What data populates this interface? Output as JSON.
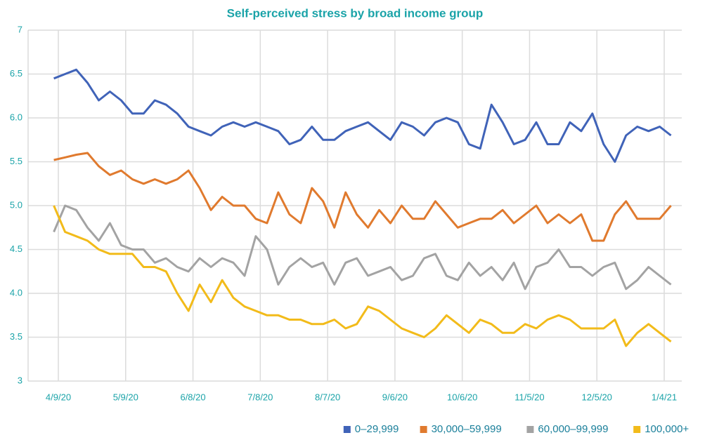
{
  "chart_data": {
    "type": "line",
    "title": "Self-perceived stress by broad income group",
    "x": [
      "4/7/20",
      "4/12/20",
      "4/17/20",
      "4/22/20",
      "4/27/20",
      "5/2/20",
      "5/7/20",
      "5/12/20",
      "5/17/20",
      "5/22/20",
      "5/27/20",
      "6/1/20",
      "6/6/20",
      "6/11/20",
      "6/16/20",
      "6/21/20",
      "6/26/20",
      "7/1/20",
      "7/6/20",
      "7/11/20",
      "7/16/20",
      "7/21/20",
      "7/26/20",
      "7/31/20",
      "8/5/20",
      "8/10/20",
      "8/15/20",
      "8/20/20",
      "8/25/20",
      "8/30/20",
      "9/4/20",
      "9/9/20",
      "9/14/20",
      "9/19/20",
      "9/24/20",
      "9/29/20",
      "10/4/20",
      "10/9/20",
      "10/14/20",
      "10/19/20",
      "10/24/20",
      "10/29/20",
      "11/3/20",
      "11/8/20",
      "11/13/20",
      "11/18/20",
      "11/23/20",
      "11/28/20",
      "12/3/20",
      "12/8/20",
      "12/13/20",
      "12/18/20",
      "12/23/20",
      "12/28/20",
      "1/2/21",
      "1/7/21"
    ],
    "series": [
      {
        "name": "0–29,999",
        "color": "#4063b8",
        "values": [
          6.45,
          6.5,
          6.55,
          6.4,
          6.2,
          6.3,
          6.2,
          6.05,
          6.05,
          6.2,
          6.15,
          6.05,
          5.9,
          5.85,
          5.8,
          5.9,
          5.95,
          5.9,
          5.95,
          5.9,
          5.85,
          5.7,
          5.75,
          5.9,
          5.75,
          5.75,
          5.85,
          5.9,
          5.95,
          5.85,
          5.75,
          5.95,
          5.9,
          5.8,
          5.95,
          6.0,
          5.95,
          5.7,
          5.65,
          6.15,
          5.95,
          5.7,
          5.75,
          5.95,
          5.7,
          5.7,
          5.95,
          5.85,
          6.05,
          5.7,
          5.5,
          5.8,
          5.9,
          5.85,
          5.9,
          5.8
        ]
      },
      {
        "name": "30,000–59,999",
        "color": "#e07a2e",
        "values": [
          5.52,
          5.55,
          5.58,
          5.6,
          5.45,
          5.35,
          5.4,
          5.3,
          5.25,
          5.3,
          5.25,
          5.3,
          5.4,
          5.2,
          4.95,
          5.1,
          5.0,
          5.0,
          4.85,
          4.8,
          5.15,
          4.9,
          4.8,
          5.2,
          5.05,
          4.75,
          5.15,
          4.9,
          4.75,
          4.95,
          4.8,
          5.0,
          4.85,
          4.85,
          5.05,
          4.9,
          4.75,
          4.8,
          4.85,
          4.85,
          4.95,
          4.8,
          4.9,
          5.0,
          4.8,
          4.9,
          4.8,
          4.9,
          4.6,
          4.6,
          4.9,
          5.05,
          4.85,
          4.85,
          4.85,
          5.0
        ]
      },
      {
        "name": "60,000–99,999",
        "color": "#a3a3a3",
        "values": [
          4.7,
          5.0,
          4.95,
          4.75,
          4.6,
          4.8,
          4.55,
          4.5,
          4.5,
          4.35,
          4.4,
          4.3,
          4.25,
          4.4,
          4.3,
          4.4,
          4.35,
          4.2,
          4.65,
          4.5,
          4.1,
          4.3,
          4.4,
          4.3,
          4.35,
          4.1,
          4.35,
          4.4,
          4.2,
          4.25,
          4.3,
          4.15,
          4.2,
          4.4,
          4.45,
          4.2,
          4.15,
          4.35,
          4.2,
          4.3,
          4.15,
          4.35,
          4.05,
          4.3,
          4.35,
          4.5,
          4.3,
          4.3,
          4.2,
          4.3,
          4.35,
          4.05,
          4.15,
          4.3,
          4.2,
          4.1
        ]
      },
      {
        "name": "100,000+",
        "color": "#f2bb1a",
        "values": [
          5.0,
          4.7,
          4.65,
          4.6,
          4.5,
          4.45,
          4.45,
          4.45,
          4.3,
          4.3,
          4.25,
          4.0,
          3.8,
          4.1,
          3.9,
          4.15,
          3.95,
          3.85,
          3.8,
          3.75,
          3.75,
          3.7,
          3.7,
          3.65,
          3.65,
          3.7,
          3.6,
          3.65,
          3.85,
          3.8,
          3.7,
          3.6,
          3.55,
          3.5,
          3.6,
          3.75,
          3.65,
          3.55,
          3.7,
          3.65,
          3.55,
          3.55,
          3.65,
          3.6,
          3.7,
          3.75,
          3.7,
          3.6,
          3.6,
          3.6,
          3.7,
          3.4,
          3.55,
          3.65,
          3.55,
          3.45
        ]
      }
    ],
    "xticks": [
      "4/9/20",
      "5/9/20",
      "6/8/20",
      "7/8/20",
      "8/7/20",
      "9/6/20",
      "10/6/20",
      "11/5/20",
      "12/5/20",
      "1/4/21"
    ],
    "ylim": [
      3,
      7
    ],
    "yticks": [
      3,
      3.5,
      {
        "value": 4,
        "label": "4.0"
      },
      4.5,
      {
        "value": 5,
        "label": "5.0"
      },
      5.5,
      {
        "value": 6,
        "label": "6.0"
      },
      6.5,
      7
    ],
    "grid": true,
    "legend": "bottom-right"
  }
}
